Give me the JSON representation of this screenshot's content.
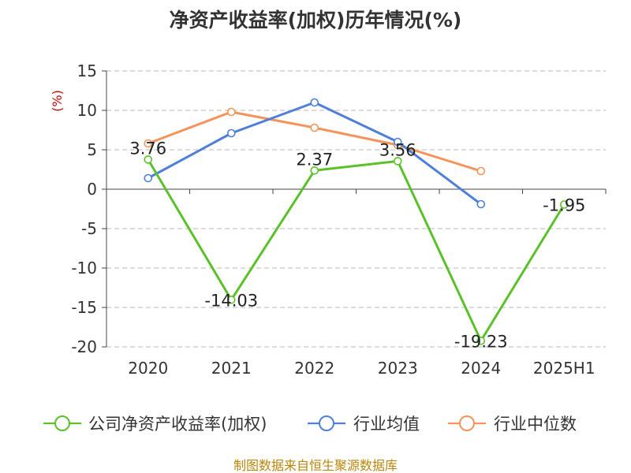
{
  "chart_data": {
    "type": "line",
    "title": "净资产收益率(加权)历年情况(%)",
    "ylabel": "(%)",
    "categories": [
      "2020",
      "2021",
      "2022",
      "2023",
      "2024",
      "2025H1"
    ],
    "ylim": [
      -20,
      15
    ],
    "yticks": [
      15,
      10,
      5,
      0,
      -5,
      -10,
      -15,
      -20
    ],
    "grid": true,
    "legend_position": "bottom",
    "series": [
      {
        "name": "公司净资产收益率(加权)",
        "color": "#5bc12b",
        "values": [
          3.76,
          -14.03,
          2.37,
          3.56,
          -19.23,
          -1.95
        ],
        "labels": [
          "3.76",
          "-14.03",
          "2.37",
          "3.56",
          "-19.23",
          "-1.95"
        ]
      },
      {
        "name": "行业均值",
        "color": "#4f7fd6",
        "values": [
          1.4,
          7.1,
          11.0,
          6.0,
          -1.9,
          null
        ]
      },
      {
        "name": "行业中位数",
        "color": "#f4935a",
        "values": [
          5.8,
          9.8,
          7.8,
          5.6,
          2.3,
          null
        ]
      }
    ]
  },
  "source": "制图数据来自恒生聚源数据库"
}
